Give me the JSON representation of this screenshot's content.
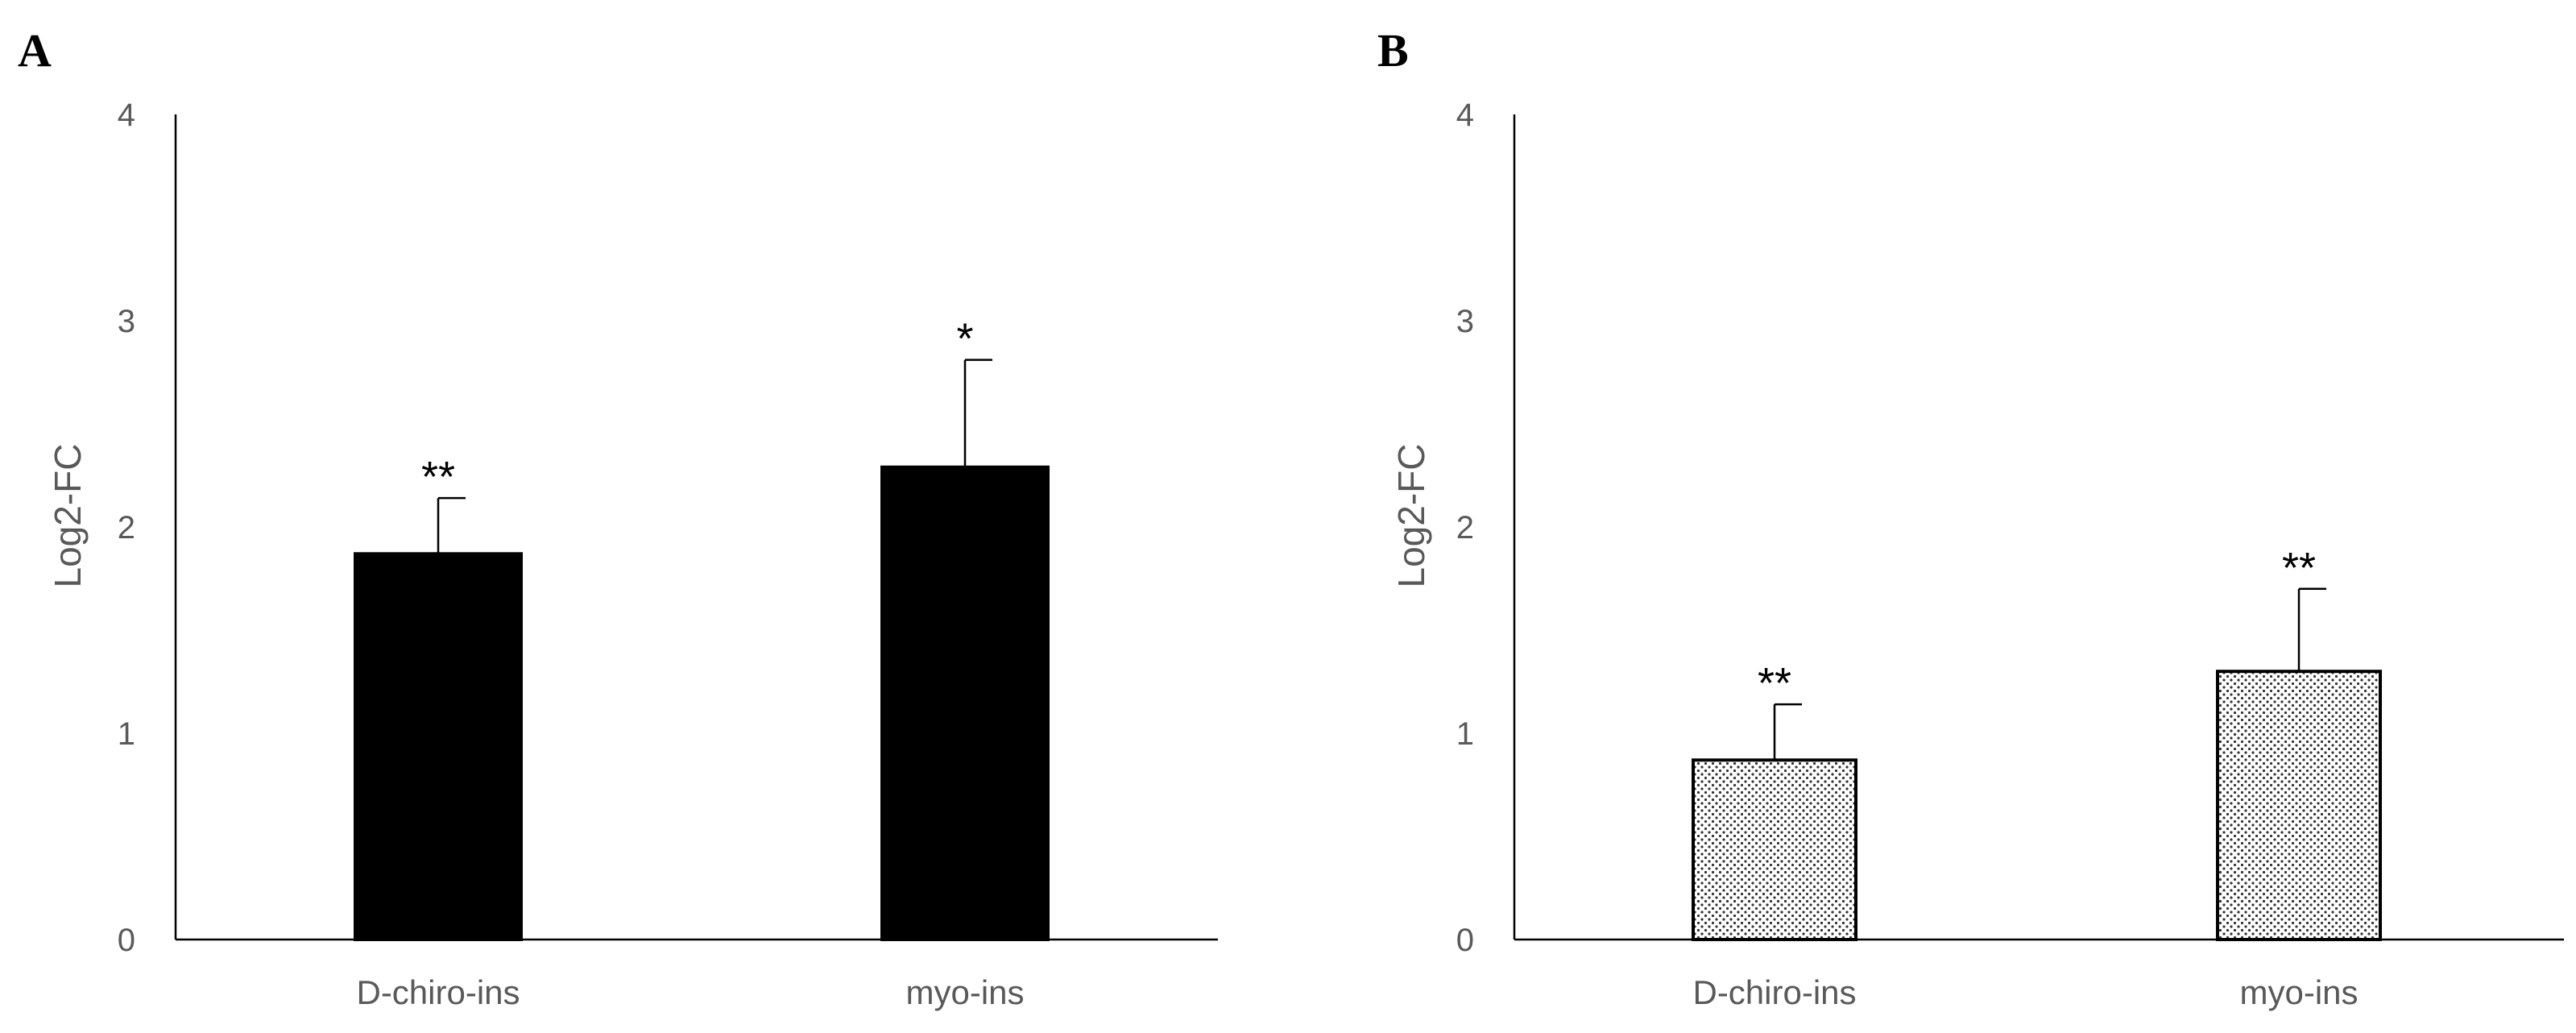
{
  "chart_data": [
    {
      "panel": "A",
      "type": "bar",
      "categories": [
        "D-chiro-ins",
        "myo-ins"
      ],
      "values": [
        1.87,
        2.29
      ],
      "errors": [
        0.27,
        0.52
      ],
      "significance": [
        "**",
        "*"
      ],
      "ylabel": "Log2-FC",
      "ylim": [
        0,
        4
      ],
      "yticks": [
        "0",
        "1",
        "2",
        "3",
        "4"
      ],
      "grid": false,
      "bar_fill": "#000000"
    },
    {
      "panel": "B",
      "type": "bar",
      "categories": [
        "D-chiro-ins",
        "myo-ins"
      ],
      "values": [
        0.87,
        1.3
      ],
      "errors": [
        0.27,
        0.4
      ],
      "significance": [
        "**",
        "**"
      ],
      "ylabel": "Log2-FC",
      "ylim": [
        0,
        4
      ],
      "yticks": [
        "0",
        "1",
        "2",
        "3",
        "4"
      ],
      "grid": false,
      "bar_fill": "dotted-pattern"
    }
  ]
}
